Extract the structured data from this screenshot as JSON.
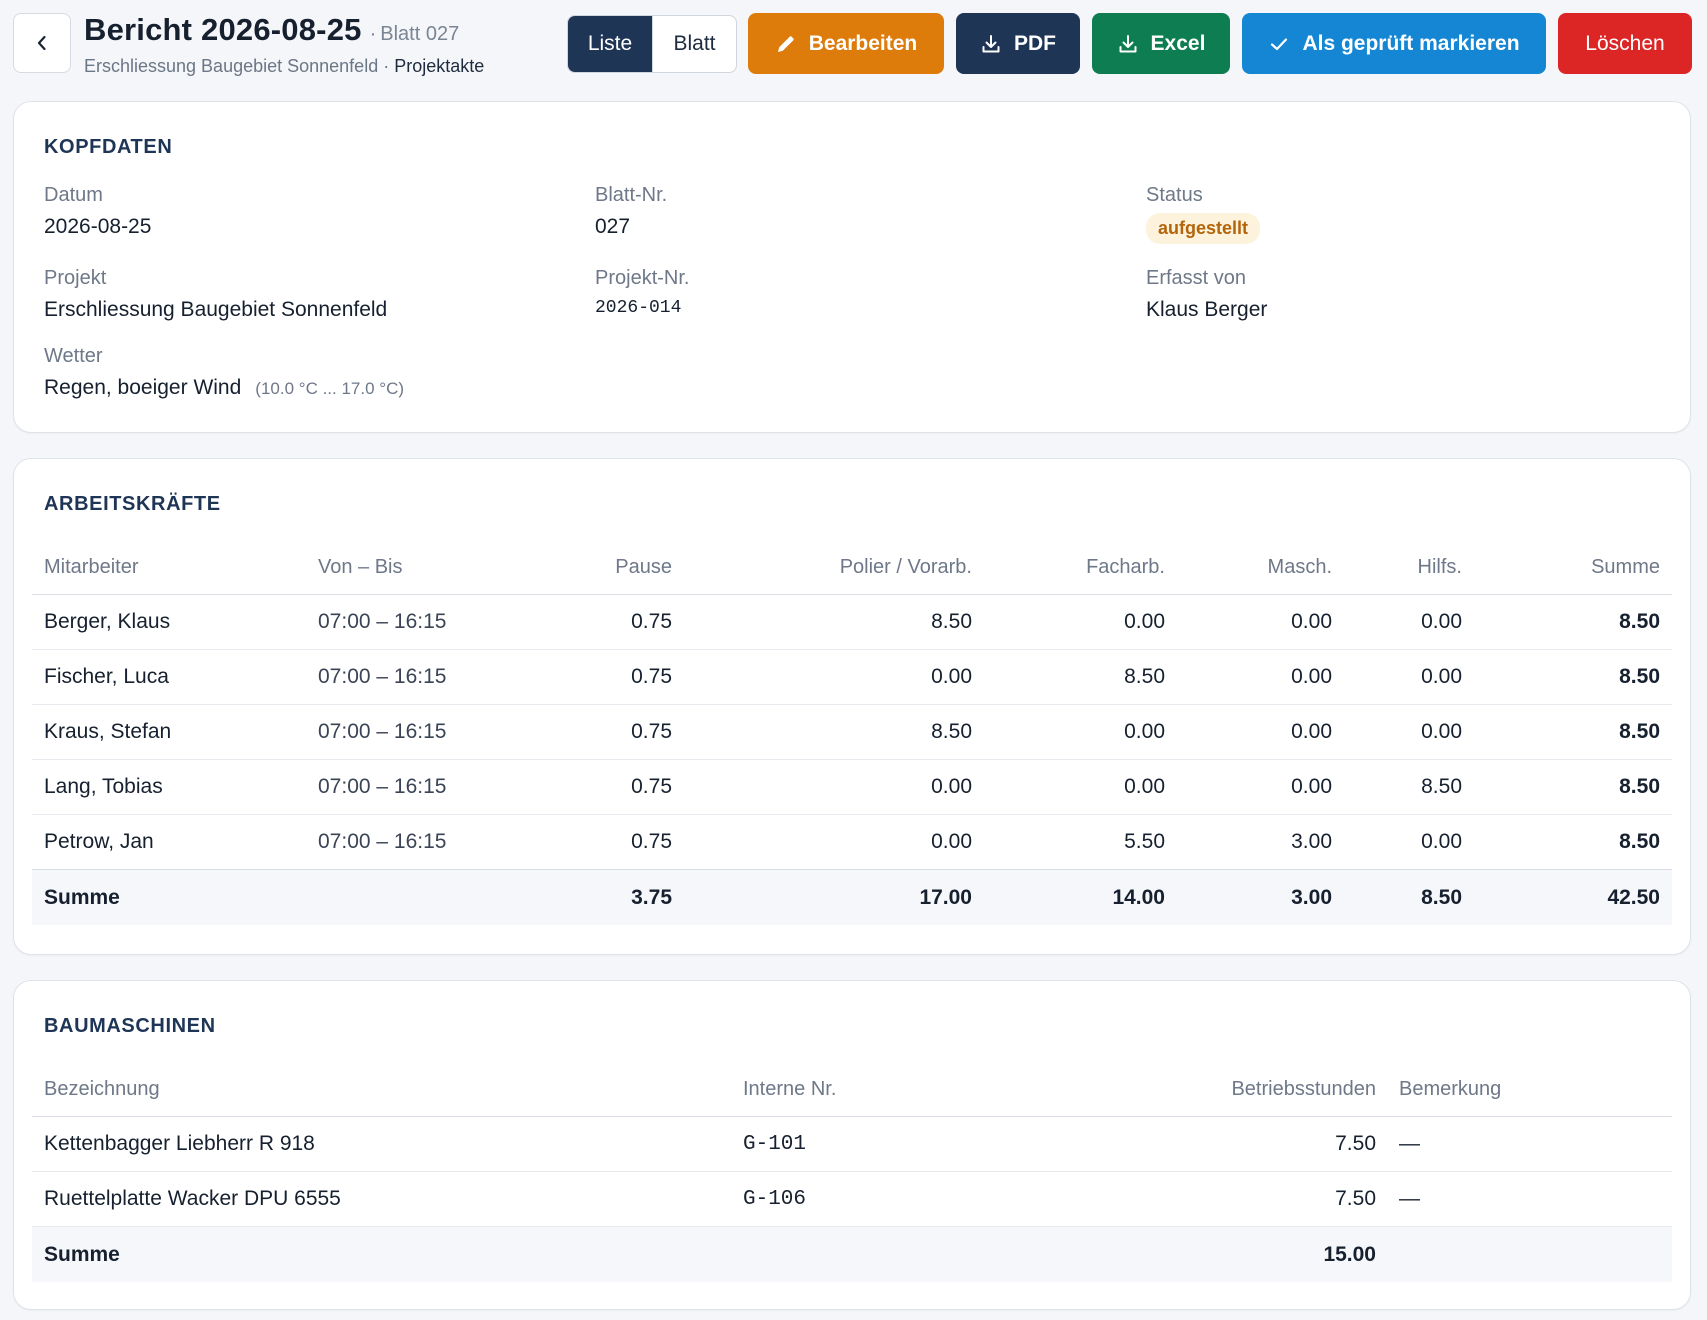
{
  "header": {
    "title": "Bericht 2026-08-25",
    "title_sep": "·",
    "blatt_label": "Blatt 027",
    "subtitle_project": "Erschliessung Baugebiet Sonnenfeld",
    "subtitle_sep": " · ",
    "subtitle_link": "Projektakte"
  },
  "view_toggle": {
    "liste": "Liste",
    "blatt": "Blatt",
    "active": "Liste"
  },
  "actions": {
    "edit": "Bearbeiten",
    "pdf": "PDF",
    "excel": "Excel",
    "check": "Als geprüft markieren",
    "delete": "Löschen"
  },
  "colors": {
    "navy": "#1e3556",
    "orange": "#dd7b0b",
    "green": "#0f7d52",
    "blue": "#1586d3",
    "red": "#dc2626",
    "badge_bg": "#fdf3dc",
    "badge_text": "#b4650c"
  },
  "icons": {
    "back": "chevron-left-icon",
    "edit": "pencil-icon",
    "pdf": "download-icon",
    "excel": "download-icon",
    "check": "check-icon"
  },
  "kopfdaten": {
    "title": "KOPFDATEN",
    "datum_label": "Datum",
    "datum": "2026-08-25",
    "blatt_label": "Blatt-Nr.",
    "blatt": "027",
    "status_label": "Status",
    "status": "aufgestellt",
    "projekt_label": "Projekt",
    "projekt": "Erschliessung Baugebiet Sonnenfeld",
    "projekt_nr_label": "Projekt-Nr.",
    "projekt_nr": "2026-014",
    "erfasst_label": "Erfasst von",
    "erfasst": "Klaus Berger",
    "wetter_label": "Wetter",
    "wetter": "Regen, boeiger Wind",
    "wetter_range": "(10.0 °C ... 17.0 °C)"
  },
  "arbeitskraefte": {
    "title": "ARBEITSKRÄFTE",
    "columns": [
      "Mitarbeiter",
      "Von – Bis",
      "Pause",
      "Polier / Vorarb.",
      "Facharb.",
      "Masch.",
      "Hilfs.",
      "Summe"
    ],
    "rows": [
      [
        "Berger, Klaus",
        "07:00 – 16:15",
        "0.75",
        "8.50",
        "0.00",
        "0.00",
        "0.00",
        "8.50"
      ],
      [
        "Fischer, Luca",
        "07:00 – 16:15",
        "0.75",
        "0.00",
        "8.50",
        "0.00",
        "0.00",
        "8.50"
      ],
      [
        "Kraus, Stefan",
        "07:00 – 16:15",
        "0.75",
        "8.50",
        "0.00",
        "0.00",
        "0.00",
        "8.50"
      ],
      [
        "Lang, Tobias",
        "07:00 – 16:15",
        "0.75",
        "0.00",
        "0.00",
        "0.00",
        "8.50",
        "8.50"
      ],
      [
        "Petrow, Jan",
        "07:00 – 16:15",
        "0.75",
        "0.00",
        "5.50",
        "3.00",
        "0.00",
        "8.50"
      ]
    ],
    "total": [
      "Summe",
      "",
      "3.75",
      "17.00",
      "14.00",
      "3.00",
      "8.50",
      "42.50"
    ]
  },
  "baumaschinen": {
    "title": "BAUMASCHINEN",
    "columns": [
      "Bezeichnung",
      "Interne Nr.",
      "Betriebsstunden",
      "Bemerkung"
    ],
    "rows": [
      [
        "Kettenbagger Liebherr R 918",
        "G-101",
        "7.50",
        "—"
      ],
      [
        "Ruettelplatte Wacker DPU 6555",
        "G-106",
        "7.50",
        "—"
      ]
    ],
    "total": [
      "Summe",
      "",
      "15.00",
      ""
    ]
  }
}
